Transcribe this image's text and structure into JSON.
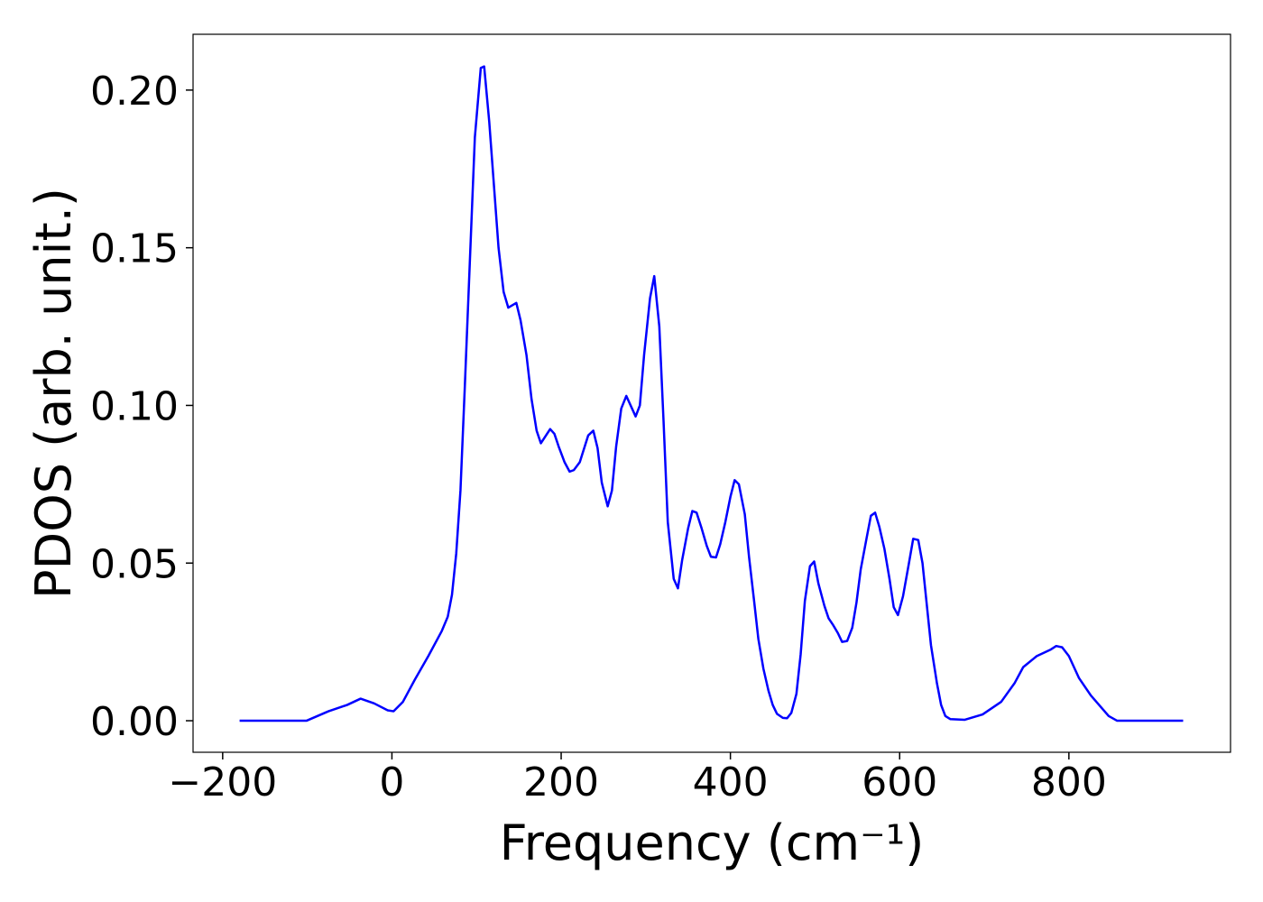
{
  "chart_data": {
    "type": "line",
    "xlabel": "Frequency (cm⁻¹)",
    "ylabel": "PDOS (arb. unit.)",
    "xlim": [
      -235,
      991
    ],
    "ylim": [
      -0.01,
      0.2177
    ],
    "xticks": [
      {
        "value": -200,
        "label": "−200"
      },
      0,
      200,
      400,
      600,
      800
    ],
    "yticks": [
      {
        "value": 0,
        "label": "0.00"
      },
      {
        "value": 0.05,
        "label": "0.05"
      },
      {
        "value": 0.1,
        "label": "0.10"
      },
      {
        "value": 0.15,
        "label": "0.15"
      },
      {
        "value": 0.2,
        "label": "0.20"
      }
    ],
    "grid": false,
    "series": [
      {
        "color": "#0000ff",
        "x": [
          -180,
          -101,
          -75,
          -53,
          -37,
          -21,
          -5,
          2,
          13,
          27,
          43,
          59,
          66,
          71,
          76,
          81,
          86,
          92,
          98,
          105,
          109,
          115,
          126,
          132,
          137.5,
          147,
          152,
          159,
          165,
          171,
          176,
          187,
          192,
          197,
          204,
          210,
          215,
          222,
          232,
          238,
          243,
          248,
          255,
          260,
          265,
          271,
          277,
          288,
          293,
          298,
          305,
          310,
          316,
          321,
          326,
          333,
          338,
          343,
          350,
          355,
          360,
          366,
          372,
          377,
          383,
          388,
          394,
          400,
          405,
          410,
          417,
          422,
          428,
          433,
          439,
          445,
          450,
          455,
          462,
          467,
          472,
          478,
          483,
          488,
          494,
          499,
          504,
          511,
          516,
          521,
          527,
          532,
          538,
          544,
          549,
          554,
          561,
          566,
          571,
          576,
          582,
          588,
          593,
          598,
          604,
          611,
          616,
          622,
          627,
          632,
          637,
          644,
          649,
          654,
          660,
          677,
          698,
          720,
          736,
          746,
          762,
          778,
          785,
          792,
          800,
          812,
          826,
          847,
          857,
          935
        ],
        "values": [
          0,
          0,
          0.003,
          0.005,
          0.007,
          0.0055,
          0.0033,
          0.003,
          0.006,
          0.013,
          0.0205,
          0.0285,
          0.033,
          0.04,
          0.053,
          0.073,
          0.105,
          0.145,
          0.185,
          0.207,
          0.2075,
          0.19,
          0.15,
          0.136,
          0.131,
          0.1325,
          0.127,
          0.116,
          0.102,
          0.092,
          0.088,
          0.0925,
          0.091,
          0.087,
          0.082,
          0.079,
          0.0795,
          0.082,
          0.0905,
          0.092,
          0.0865,
          0.0755,
          0.068,
          0.073,
          0.087,
          0.099,
          0.103,
          0.0965,
          0.1,
          0.116,
          0.134,
          0.141,
          0.125,
          0.095,
          0.063,
          0.045,
          0.042,
          0.051,
          0.061,
          0.0665,
          0.066,
          0.061,
          0.0555,
          0.052,
          0.0518,
          0.056,
          0.063,
          0.071,
          0.0763,
          0.075,
          0.0655,
          0.052,
          0.038,
          0.026,
          0.0165,
          0.0095,
          0.005,
          0.0022,
          0.0009,
          0.0008,
          0.0025,
          0.0085,
          0.021,
          0.038,
          0.049,
          0.0505,
          0.0435,
          0.0365,
          0.0325,
          0.0305,
          0.0278,
          0.025,
          0.0253,
          0.0295,
          0.0375,
          0.048,
          0.058,
          0.065,
          0.066,
          0.0615,
          0.0545,
          0.045,
          0.036,
          0.0335,
          0.0395,
          0.05,
          0.0577,
          0.0573,
          0.05,
          0.037,
          0.024,
          0.012,
          0.005,
          0.0015,
          0.0005,
          0.0003,
          0.002,
          0.006,
          0.012,
          0.017,
          0.0205,
          0.0225,
          0.0237,
          0.0233,
          0.0205,
          0.0135,
          0.008,
          0.0015,
          0,
          0
        ]
      }
    ]
  }
}
